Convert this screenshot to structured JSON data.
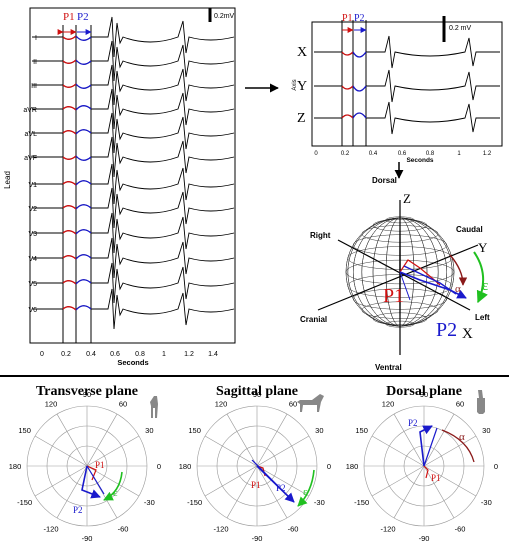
{
  "ecg12": {
    "leads": [
      "I",
      "II",
      "III",
      "aVR",
      "aVL",
      "aVF",
      "V1",
      "V2",
      "V3",
      "V4",
      "V5",
      "V6"
    ],
    "ylabel": "Lead",
    "xlabel": "Seconds",
    "xticks": [
      "0",
      "0.2",
      "0.4",
      "0.6",
      "0.8",
      "1",
      "1.2",
      "1.4"
    ],
    "scale_label": "0.2mV",
    "p1_label": "P1",
    "p2_label": "P2"
  },
  "vcg": {
    "leads": [
      "X",
      "Y",
      "Z"
    ],
    "ylabel": "Axis",
    "xlabel": "Seconds",
    "xticks": [
      "0",
      "0.2",
      "0.4",
      "0.6",
      "0.8",
      "1",
      "1.2"
    ],
    "scale_label": "0.2 mV",
    "p1_label": "P1",
    "p2_label": "P2"
  },
  "sphere": {
    "dorsal": "Dorsal",
    "ventral": "Ventral",
    "right": "Right",
    "left": "Left",
    "cranial": "Cranial",
    "caudal": "Caudal",
    "z": "Z",
    "y": "Y",
    "x": "X",
    "p1": "P1",
    "p2": "P2",
    "alpha": "α",
    "epsilon": "ε"
  },
  "polars": [
    {
      "title": "Transverse plane",
      "angle_label": "ε",
      "p1": "P1",
      "p2": "P2",
      "ticks": {
        "t90": "90",
        "t60": "60",
        "t30": "30",
        "t0": "0",
        "tm30": "-30",
        "tm60": "-60",
        "tm90": "-90",
        "tm120": "-120",
        "tm150": "-150",
        "t180": "180",
        "t150": "150",
        "t120": "120"
      }
    },
    {
      "title": "Sagittal plane",
      "angle_label": "ε",
      "p1": "P1",
      "p2": "P2",
      "ticks": {
        "t90": "90",
        "t60": "60",
        "t30": "30",
        "t0": "0",
        "tm30": "-30",
        "tm60": "-60",
        "tm90": "-90",
        "tm120": "-120",
        "tm150": "-150",
        "t180": "180",
        "t150": "150",
        "t120": "120"
      }
    },
    {
      "title": "Dorsal plane",
      "angle_label": "α",
      "p1": "P1",
      "p2": "P2",
      "ticks": {
        "t90": "90",
        "t60": "60",
        "t30": "30",
        "t0": "0",
        "tm30": "-30",
        "tm60": "-60",
        "tm90": "-90",
        "tm120": "-120",
        "tm150": "-150",
        "t180": "180",
        "t150": "150",
        "t120": "120"
      }
    }
  ]
}
